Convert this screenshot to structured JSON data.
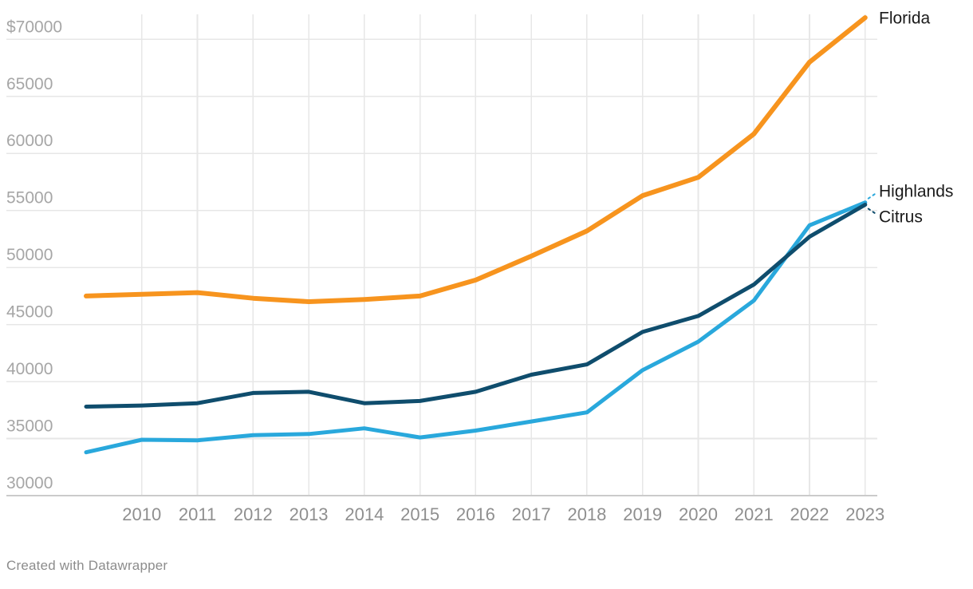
{
  "chart_data": {
    "type": "line",
    "title": "",
    "xlabel": "",
    "ylabel": "",
    "grid": "on",
    "legend_position": "end-of-line-labels",
    "ylim": [
      30000,
      70000
    ],
    "currency_prefix_on_top_tick": "$",
    "x": [
      2009,
      2010,
      2011,
      2012,
      2013,
      2014,
      2015,
      2016,
      2017,
      2018,
      2019,
      2020,
      2021,
      2022,
      2023
    ],
    "x_ticks": [
      2010,
      2011,
      2012,
      2013,
      2014,
      2015,
      2016,
      2017,
      2018,
      2019,
      2020,
      2021,
      2022,
      2023
    ],
    "y_ticks": [
      {
        "v": 70000,
        "label": "$70000"
      },
      {
        "v": 65000,
        "label": "65000"
      },
      {
        "v": 60000,
        "label": "60000"
      },
      {
        "v": 55000,
        "label": "55000"
      },
      {
        "v": 50000,
        "label": "50000"
      },
      {
        "v": 45000,
        "label": "45000"
      },
      {
        "v": 40000,
        "label": "40000"
      },
      {
        "v": 35000,
        "label": "35000"
      },
      {
        "v": 30000,
        "label": "30000"
      }
    ],
    "series": [
      {
        "name": "Florida",
        "color": "#F7941E",
        "stroke_width": 6,
        "values": [
          47500,
          47650,
          47800,
          47300,
          47000,
          47200,
          47500,
          48900,
          51000,
          53200,
          56300,
          57900,
          61700,
          68000,
          71900
        ]
      },
      {
        "name": "Highlands",
        "color": "#29A8DC",
        "stroke_width": 5,
        "values": [
          33800,
          34900,
          34850,
          35300,
          35400,
          35900,
          35100,
          35700,
          36500,
          37300,
          41000,
          43500,
          47100,
          53700,
          55700
        ]
      },
      {
        "name": "Citrus",
        "color": "#0F4D6D",
        "stroke_width": 5,
        "values": [
          37800,
          37900,
          38100,
          39000,
          39100,
          38100,
          38300,
          39100,
          40600,
          41500,
          44350,
          45750,
          48500,
          52700,
          55500
        ]
      }
    ]
  },
  "colors": {
    "gridline": "#E7E7E7",
    "baseline": "#CBCBCB",
    "y_tick_label": "#A6A6A6",
    "x_tick_label": "#8F8F8F",
    "end_label": "#1A1A1A",
    "footer": "#8C8C8C"
  },
  "footer": {
    "credit": "Created with Datawrapper"
  }
}
